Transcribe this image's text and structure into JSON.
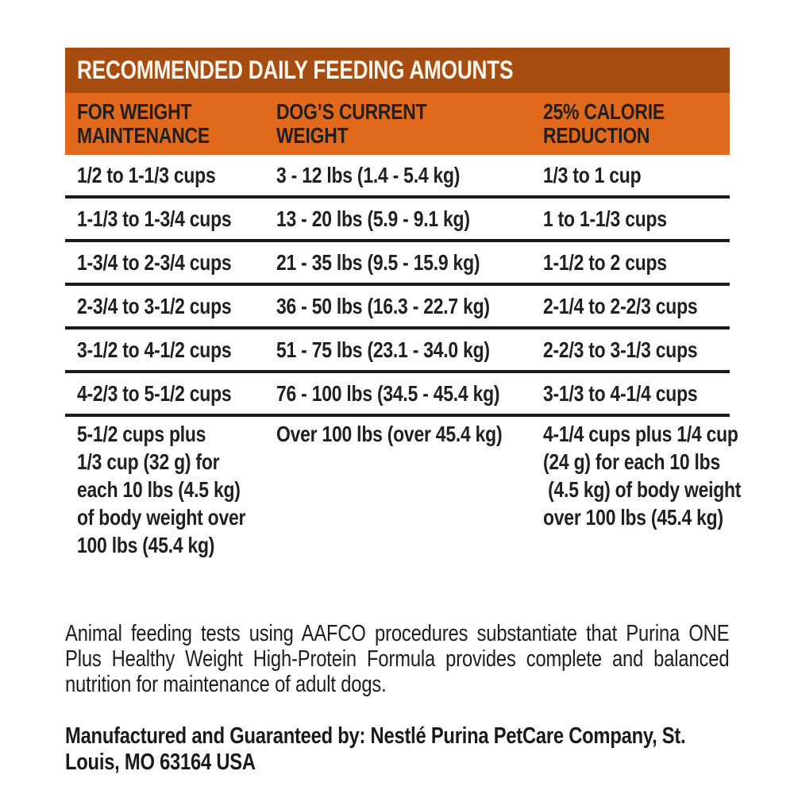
{
  "colors": {
    "title_bar_background": "#a84d11",
    "column_header_background": "#e0691b",
    "header_text": "#fbf6ec",
    "body_text": "#221f1f",
    "divider": "#1c1a19",
    "page_background": "#ffffff"
  },
  "header": {
    "title": "RECOMMENDED DAILY FEEDING AMOUNTS"
  },
  "columns": [
    {
      "label": "FOR WEIGHT\nMAINTENANCE"
    },
    {
      "label": "DOG’S CURRENT\nWEIGHT"
    },
    {
      "label": "25% CALORIE\nREDUCTION"
    }
  ],
  "rows": [
    {
      "maintenance": "1/2 to 1-1/3 cups",
      "weight": "3 - 12 lbs (1.4 - 5.4 kg)",
      "reduction": "1/3 to 1 cup"
    },
    {
      "maintenance": "1-1/3 to 1-3/4 cups",
      "weight": "13 - 20 lbs (5.9 - 9.1 kg)",
      "reduction": "1 to 1-1/3 cups"
    },
    {
      "maintenance": "1-3/4 to 2-3/4 cups",
      "weight": "21 - 35 lbs (9.5 - 15.9 kg)",
      "reduction": "1-1/2 to 2 cups"
    },
    {
      "maintenance": "2-3/4 to 3-1/2 cups",
      "weight": "36 - 50 lbs (16.3 - 22.7 kg)",
      "reduction": "2-1/4 to 2-2/3 cups"
    },
    {
      "maintenance": "3-1/2 to 4-1/2 cups",
      "weight": "51 - 75 lbs (23.1 - 34.0 kg)",
      "reduction": "2-2/3 to 3-1/3 cups"
    },
    {
      "maintenance": "4-2/3 to 5-1/2 cups",
      "weight": "76 - 100 lbs (34.5 - 45.4 kg)",
      "reduction": "3-1/3 to 4-1/4 cups"
    },
    {
      "maintenance": "5-1/2 cups plus\n1/3 cup (32 g) for\neach 10 lbs (4.5 kg)\nof body weight over\n100 lbs (45.4 kg)",
      "weight": "Over 100 lbs (over 45.4 kg)",
      "reduction": "4-1/4 cups plus 1/4 cup\n(24 g) for each 10 lbs\n (4.5 kg) of body weight\nover 100 lbs (45.4 kg)"
    }
  ],
  "footnote": "Animal feeding tests using AAFCO procedures substantiate that Purina ONE Plus Healthy Weight High-Protein Formula provides complete and balanced nutrition for maintenance of adult dogs.",
  "manufacturer": "Manufactured and Guaranteed by: Nestlé Purina PetCare Company, St. Louis, MO 63164 USA"
}
